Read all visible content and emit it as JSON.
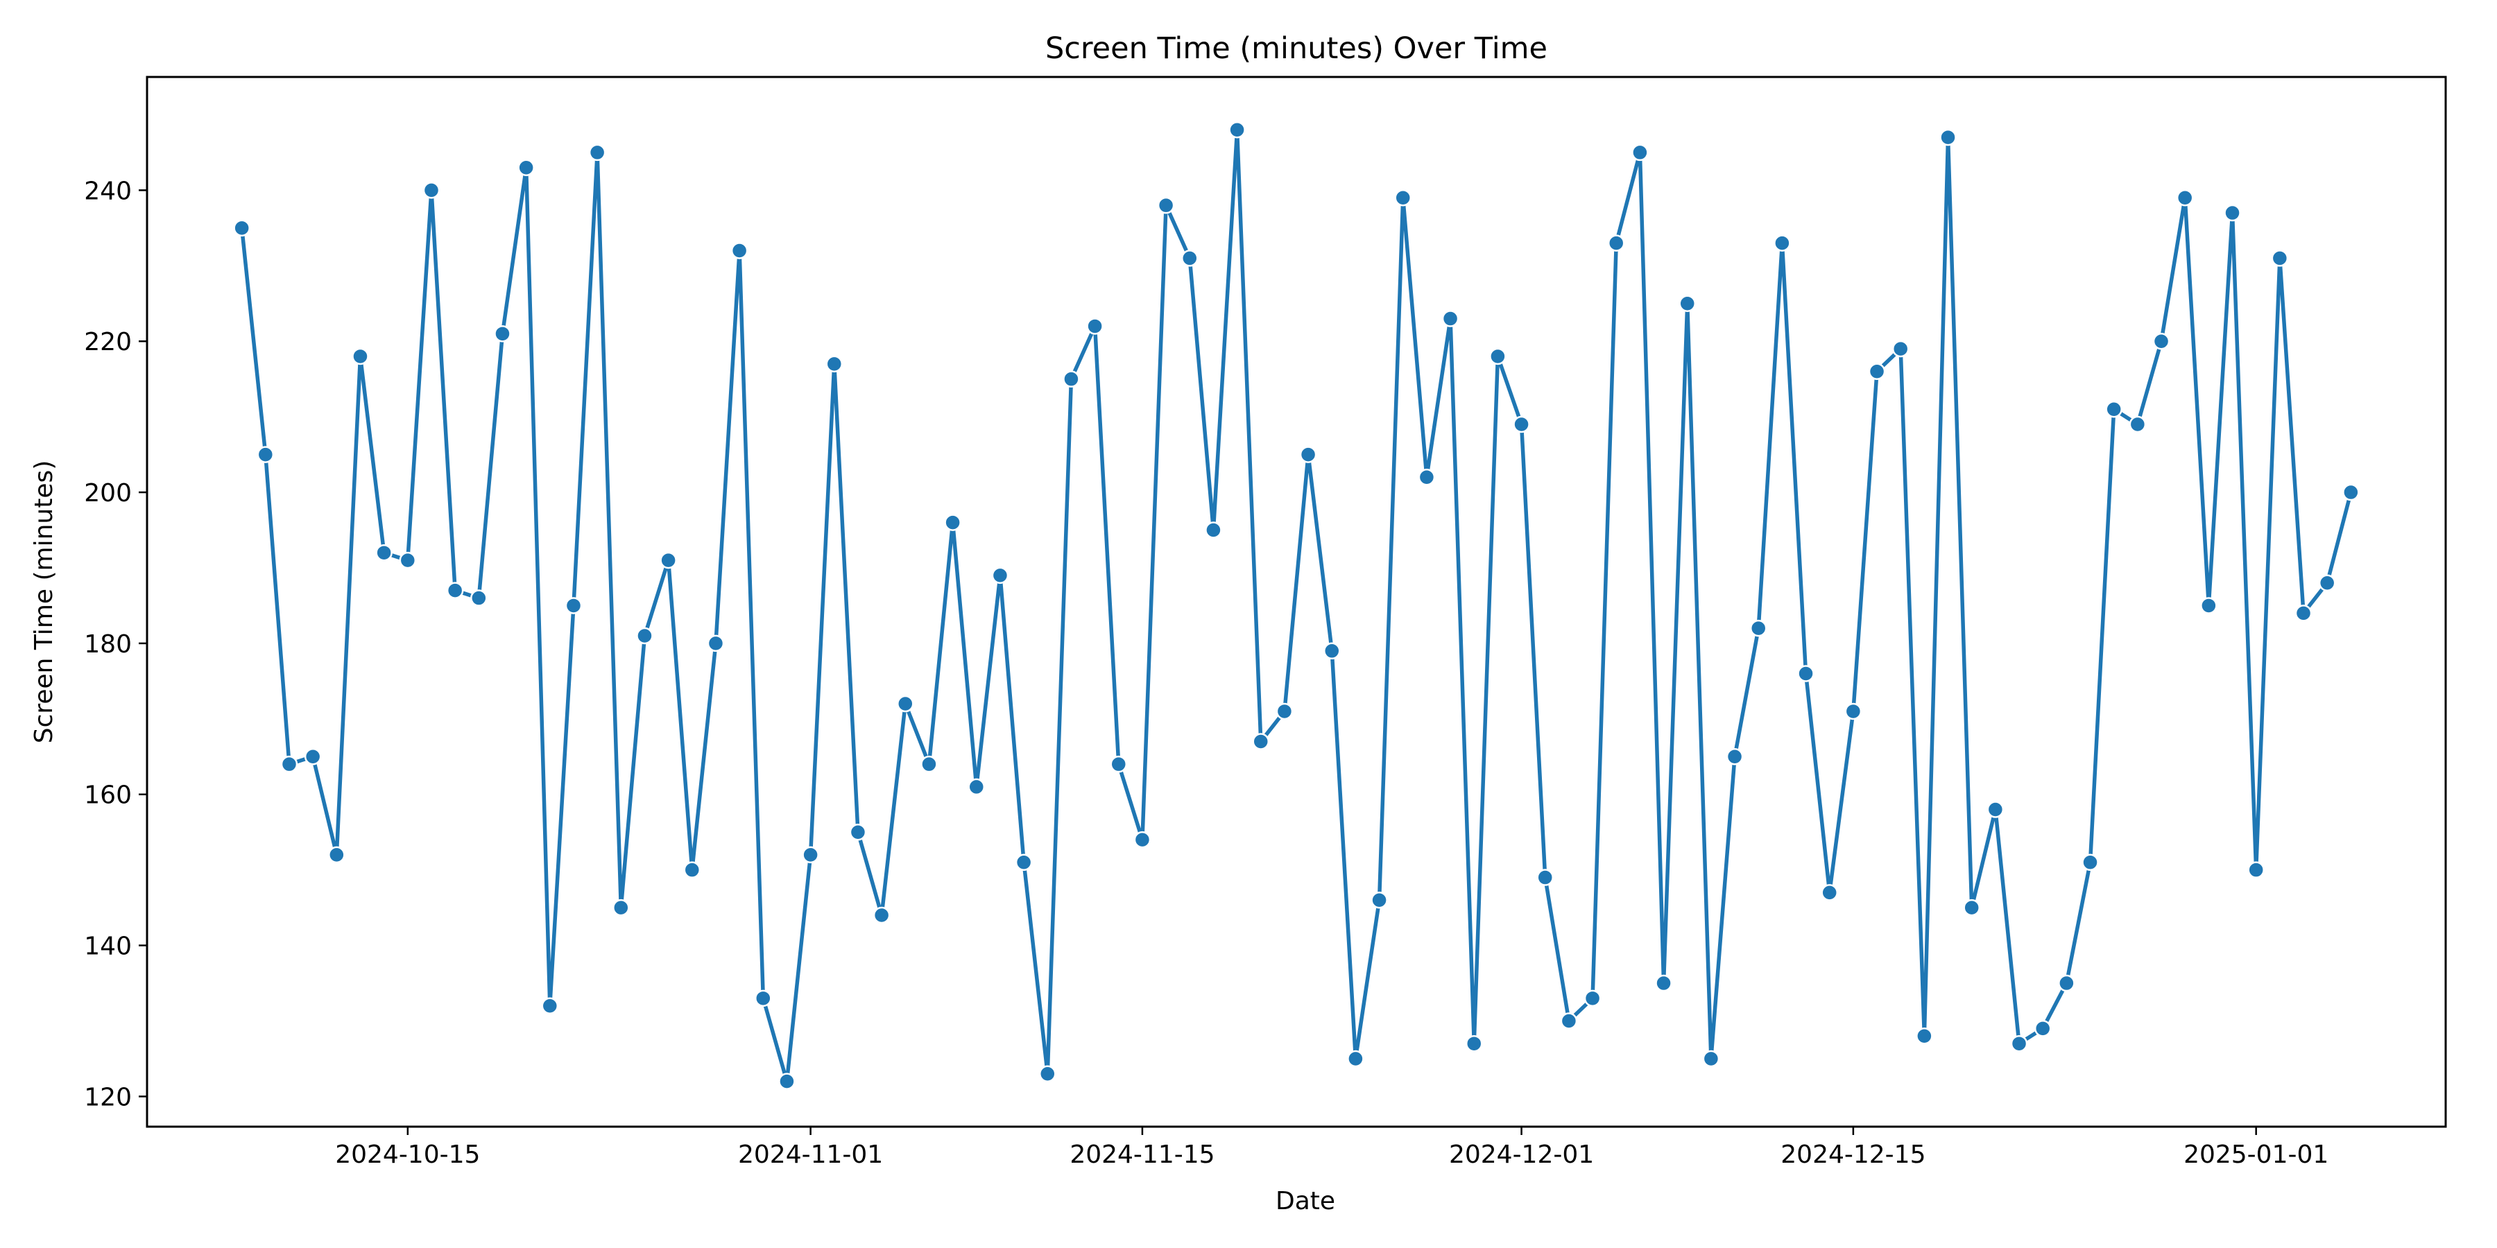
{
  "chart_data": {
    "type": "line",
    "title": "Screen Time (minutes) Over Time",
    "xlabel": "Date",
    "ylabel": "Screen Time (minutes)",
    "x_axis_type": "date",
    "x_start": "2024-10-08",
    "x_end": "2025-01-05",
    "xlim": [
      "2024-10-04",
      "2025-01-09"
    ],
    "ylim": [
      116,
      255
    ],
    "x_ticks": [
      "2024-10-15",
      "2024-11-01",
      "2024-11-15",
      "2024-12-01",
      "2024-12-15",
      "2025-01-01"
    ],
    "y_ticks": [
      120,
      140,
      160,
      180,
      200,
      220,
      240
    ],
    "grid": false,
    "legend": "none",
    "markers": true,
    "series": [
      {
        "color": "#1f77b4",
        "values": [
          235,
          205,
          164,
          165,
          152,
          218,
          192,
          191,
          240,
          187,
          186,
          221,
          243,
          132,
          185,
          245,
          145,
          181,
          191,
          150,
          180,
          232,
          133,
          122,
          152,
          217,
          155,
          144,
          172,
          164,
          196,
          161,
          189,
          151,
          123,
          215,
          222,
          164,
          154,
          238,
          231,
          195,
          248,
          167,
          171,
          205,
          179,
          125,
          146,
          239,
          202,
          223,
          127,
          218,
          209,
          149,
          130,
          133,
          233,
          245,
          135,
          225,
          125,
          165,
          182,
          233,
          176,
          147,
          171,
          216,
          219,
          128,
          247,
          145,
          158,
          127,
          129,
          135,
          151,
          211,
          209,
          220,
          239,
          185,
          237,
          150,
          231,
          184,
          188,
          200
        ]
      }
    ]
  }
}
